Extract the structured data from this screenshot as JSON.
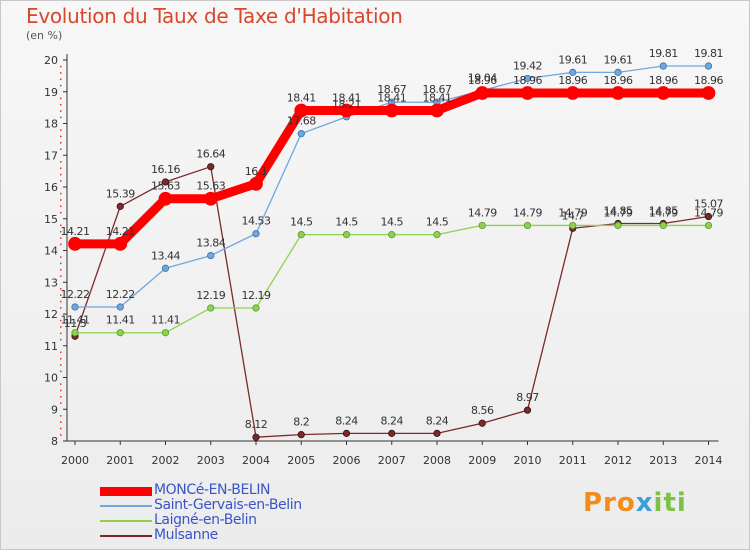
{
  "header": {
    "title": "Evolution du Taux de Taxe d'Habitation",
    "unit": "(en %)"
  },
  "logo": {
    "text": "Proxiti"
  },
  "chart_data": {
    "type": "line",
    "title": "Evolution du Taux de Taxe d'Habitation",
    "ylabel": "(en %)",
    "xlabel": "",
    "ylim": [
      8,
      20
    ],
    "grid": false,
    "legend_position": "bottom-left",
    "x": [
      2000,
      2001,
      2002,
      2003,
      2004,
      2005,
      2006,
      2007,
      2008,
      2009,
      2010,
      2011,
      2012,
      2013,
      2014
    ],
    "series": [
      {
        "name": "MONCé-EN-BELIN",
        "color": "#ff0000",
        "values": [
          14.21,
          14.21,
          15.63,
          15.63,
          16.1,
          18.41,
          18.41,
          18.41,
          18.41,
          18.96,
          18.96,
          18.96,
          18.96,
          18.96,
          18.96
        ],
        "labels": [
          "14.21",
          "14.21",
          "15.63",
          "15.63",
          "16.1",
          "18.41",
          "18.41",
          "18.41",
          "18.41",
          "18.96",
          "18.96",
          "18.96",
          "18.96",
          "18.96",
          "18.96"
        ]
      },
      {
        "name": "Saint-Gervais-en-Belin",
        "color": "#6fa8dc",
        "values": [
          12.22,
          12.22,
          13.44,
          13.84,
          14.53,
          17.68,
          18.21,
          18.67,
          18.67,
          19.04,
          19.42,
          19.61,
          19.61,
          19.81,
          19.81
        ],
        "labels": [
          "12.22",
          "12.22",
          "13.44",
          "13.84",
          "14.53",
          "17.68",
          "18.21",
          "18.67",
          "18.67",
          "19.04",
          "19.42",
          "19.61",
          "19.61",
          "19.81",
          "19.81"
        ]
      },
      {
        "name": "Laigné-en-Belin",
        "color": "#8fd14f",
        "values": [
          11.41,
          11.41,
          11.41,
          12.19,
          12.19,
          14.5,
          14.5,
          14.5,
          14.5,
          14.79,
          14.79,
          14.79,
          14.79,
          14.79,
          14.79
        ],
        "labels": [
          "11.41",
          "11.41",
          "11.41",
          "12.19",
          "12.19",
          "14.5",
          "14.5",
          "14.5",
          "14.5",
          "14.79",
          "14.79",
          "14.79",
          "14.79",
          "14.79",
          "14.79"
        ]
      },
      {
        "name": "Mulsanne",
        "color": "#7a2a2a",
        "values": [
          11.3,
          15.39,
          16.16,
          16.64,
          8.12,
          8.2,
          8.24,
          8.24,
          8.24,
          8.56,
          8.97,
          14.7,
          14.85,
          14.85,
          15.07
        ],
        "labels": [
          "11.3",
          "15.39",
          "16.16",
          "16.64",
          "8.12",
          "8.2",
          "8.24",
          "8.24",
          "8.24",
          "8.56",
          "8.97",
          "14.7",
          "14.85",
          "14.85",
          "15.07"
        ]
      }
    ]
  }
}
